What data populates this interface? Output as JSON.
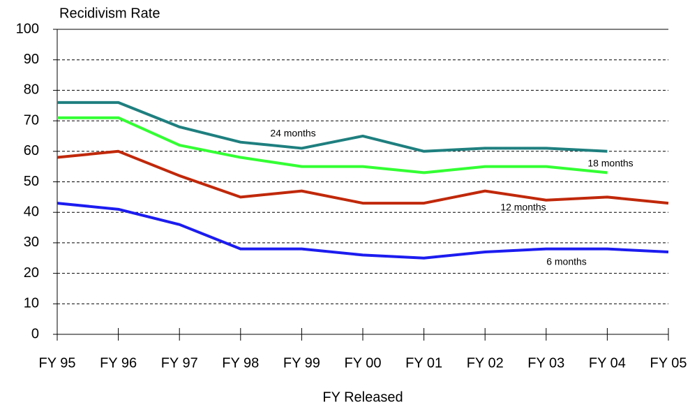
{
  "chart_data": {
    "type": "line",
    "title": "Recidivism Rate",
    "x_label": "FY Released",
    "categories": [
      "FY 95",
      "FY 96",
      "FY 97",
      "FY 98",
      "FY 99",
      "FY 00",
      "FY 01",
      "FY 02",
      "FY 03",
      "FY 04",
      "FY 05"
    ],
    "series": [
      {
        "name": "24 months",
        "color": "#1f7f7f",
        "values": [
          76,
          76,
          68,
          63,
          61,
          65,
          60,
          61,
          61,
          60,
          null
        ]
      },
      {
        "name": "18 months",
        "color": "#33ff33",
        "values": [
          71,
          71,
          62,
          58,
          55,
          55,
          53,
          55,
          55,
          53,
          null
        ]
      },
      {
        "name": "12 months",
        "color": "#c0280a",
        "values": [
          58,
          60,
          52,
          45,
          47,
          43,
          43,
          47,
          44,
          45,
          43
        ]
      },
      {
        "name": "6 months",
        "color": "#1c1cf0",
        "values": [
          43,
          41,
          36,
          28,
          28,
          26,
          25,
          27,
          28,
          28,
          27
        ]
      }
    ],
    "ylim": [
      0,
      100
    ],
    "yticks": [
      0,
      10,
      20,
      30,
      40,
      50,
      60,
      70,
      80,
      90,
      100
    ],
    "grid": true
  }
}
